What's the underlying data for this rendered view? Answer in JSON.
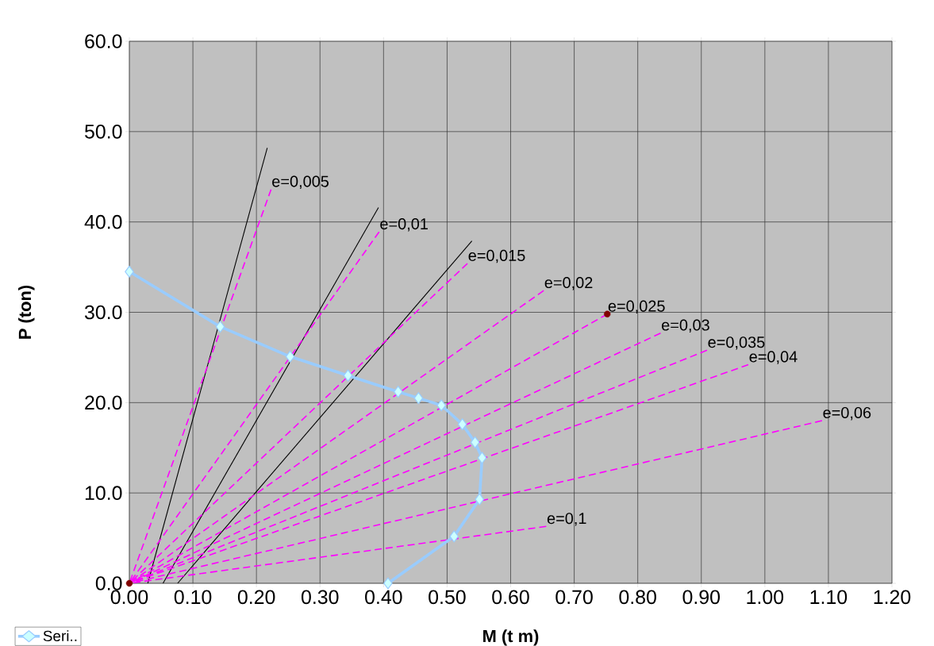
{
  "chart_data": {
    "type": "line",
    "xlabel": "M (t m)",
    "ylabel": "P (ton)",
    "xlim": [
      0,
      1.2
    ],
    "ylim": [
      0,
      60
    ],
    "xticks": [
      {
        "value": 0,
        "label": "0.00"
      },
      {
        "value": 0.1,
        "label": "0.10"
      },
      {
        "value": 0.2,
        "label": "0.20"
      },
      {
        "value": 0.3,
        "label": "0.30"
      },
      {
        "value": 0.4,
        "label": "0.40"
      },
      {
        "value": 0.5,
        "label": "0.50"
      },
      {
        "value": 0.6,
        "label": "0.60"
      },
      {
        "value": 0.7,
        "label": "0.70"
      },
      {
        "value": 0.8,
        "label": "0.80"
      },
      {
        "value": 0.9,
        "label": "0.90"
      },
      {
        "value": 1.0,
        "label": "1.00"
      },
      {
        "value": 1.1,
        "label": "1.10"
      },
      {
        "value": 1.2,
        "label": "1.20"
      }
    ],
    "yticks": [
      {
        "value": 0,
        "label": "0.0"
      },
      {
        "value": 10,
        "label": "10.0"
      },
      {
        "value": 20,
        "label": "20.0"
      },
      {
        "value": 30,
        "label": "30.0"
      },
      {
        "value": 40,
        "label": "40.0"
      },
      {
        "value": 50,
        "label": "50.0"
      },
      {
        "value": 60,
        "label": "60.0"
      }
    ],
    "grid": true,
    "legend": "bottom left",
    "series": [
      {
        "type": "line",
        "color": "#000000",
        "line_style": "solid",
        "marker": "none",
        "x": [
          0.029,
          0.217
        ],
        "values": [
          0,
          48.2
        ]
      },
      {
        "type": "line",
        "color": "#000000",
        "line_style": "solid",
        "marker": "none",
        "x": [
          0.053,
          0.392
        ],
        "values": [
          0,
          41.6
        ]
      },
      {
        "type": "line",
        "color": "#000000",
        "line_style": "solid",
        "marker": "none",
        "x": [
          0.076,
          0.539
        ],
        "values": [
          0,
          37.9
        ]
      },
      {
        "type": "line",
        "color": "#ff00ff",
        "line_style": "dashed",
        "marker": "none",
        "x": [
          0.223,
          0
        ],
        "values": [
          43.6,
          0
        ]
      },
      {
        "type": "line",
        "color": "#ff00ff",
        "line_style": "dashed",
        "marker": "none",
        "x": [
          0.393,
          0
        ],
        "values": [
          38.9,
          0
        ]
      },
      {
        "type": "line",
        "color": "#ff00ff",
        "line_style": "dashed",
        "marker": "none",
        "x": [
          0.532,
          0
        ],
        "values": [
          35.4,
          0
        ]
      },
      {
        "type": "line",
        "color": "#ff00ff",
        "line_style": "dashed",
        "marker": "none",
        "x": [
          0.652,
          0
        ],
        "values": [
          32.4,
          0
        ]
      },
      {
        "type": "line",
        "color": "#ff00ff",
        "line_style": "dashed",
        "marker": "none",
        "x": [
          0.752,
          0
        ],
        "values": [
          29.8,
          0
        ]
      },
      {
        "type": "line",
        "color": "#ff00ff",
        "line_style": "dashed",
        "marker": "none",
        "x": [
          0.836,
          0
        ],
        "values": [
          27.7,
          0
        ]
      },
      {
        "type": "line",
        "color": "#ff00ff",
        "line_style": "dashed",
        "marker": "none",
        "x": [
          0.909,
          0
        ],
        "values": [
          25.8,
          0
        ]
      },
      {
        "type": "line",
        "color": "#ff00ff",
        "line_style": "dashed",
        "marker": "none",
        "x": [
          0.974,
          0
        ],
        "values": [
          24.2,
          0
        ]
      },
      {
        "type": "line",
        "color": "#ff00ff",
        "line_style": "dashed",
        "marker": "none",
        "x": [
          1.09,
          0
        ],
        "values": [
          18.0,
          0
        ]
      },
      {
        "type": "line",
        "color": "#ff00ff",
        "line_style": "dashed",
        "marker": "none",
        "x": [
          0.656,
          0
        ],
        "values": [
          6.3,
          0
        ]
      },
      {
        "type": "scatter",
        "color": "#800000",
        "marker": "circle",
        "x": [
          0,
          0.752
        ],
        "values": [
          0,
          29.8
        ]
      },
      {
        "type": "line",
        "name": "Seri..",
        "color": "#99ccff",
        "line_style": "solid",
        "marker": "diamond",
        "x": [
          0.0,
          0.143,
          0.253,
          0.344,
          0.423,
          0.455,
          0.491,
          0.524,
          0.544,
          0.555,
          0.551,
          0.511,
          0.407
        ],
        "values": [
          34.5,
          28.4,
          25.1,
          23.0,
          21.2,
          20.5,
          19.7,
          17.6,
          15.6,
          13.9,
          9.3,
          5.2,
          0.0
        ]
      }
    ],
    "annotations": [
      {
        "text": "e=0,005",
        "x": 0.223,
        "y": 43.6
      },
      {
        "text": "e=0,01",
        "x": 0.393,
        "y": 38.9
      },
      {
        "text": "e=0,015",
        "x": 0.532,
        "y": 35.4
      },
      {
        "text": "e=0,02",
        "x": 0.652,
        "y": 32.4
      },
      {
        "text": "e=0,025",
        "x": 0.752,
        "y": 29.8
      },
      {
        "text": "e=0,03",
        "x": 0.836,
        "y": 27.7
      },
      {
        "text": "e=0,035",
        "x": 0.909,
        "y": 25.8
      },
      {
        "text": "e=0,04",
        "x": 0.974,
        "y": 24.2
      },
      {
        "text": "e=0,06",
        "x": 1.09,
        "y": 18.0
      },
      {
        "text": "e=0,1",
        "x": 0.656,
        "y": 6.3
      }
    ]
  }
}
